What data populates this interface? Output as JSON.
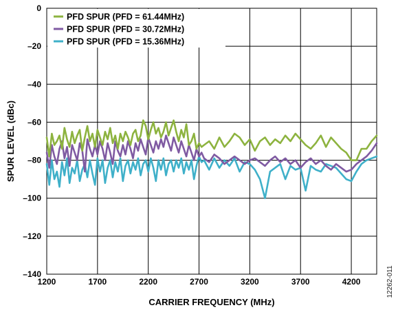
{
  "chart_data": {
    "type": "line",
    "title": "",
    "xlabel": "CARRIER FREQUENCY (MHz)",
    "ylabel": "SPUR LEVEL (dBc)",
    "xlim": [
      1200,
      4450
    ],
    "ylim": [
      -140,
      0
    ],
    "x_ticks": [
      "1200",
      "1700",
      "2200",
      "2700",
      "3200",
      "3700",
      "4200"
    ],
    "y_ticks": [
      "0",
      "–20",
      "–40",
      "–60",
      "–80",
      "–100",
      "–120",
      "–140"
    ],
    "grid": true,
    "legend_position": "top-left",
    "figure_id": "12262-011",
    "series": [
      {
        "name": "PFD SPUR (PFD = 61.44MHz)",
        "color": "#8db33f",
        "x": [
          1200,
          1225,
          1250,
          1275,
          1300,
          1325,
          1350,
          1375,
          1400,
          1425,
          1450,
          1475,
          1500,
          1525,
          1550,
          1575,
          1600,
          1625,
          1650,
          1675,
          1700,
          1725,
          1750,
          1775,
          1800,
          1825,
          1850,
          1875,
          1900,
          1925,
          1950,
          1975,
          2000,
          2025,
          2050,
          2075,
          2100,
          2125,
          2150,
          2175,
          2200,
          2225,
          2250,
          2275,
          2300,
          2325,
          2350,
          2375,
          2400,
          2425,
          2450,
          2475,
          2500,
          2525,
          2550,
          2575,
          2600,
          2625,
          2650,
          2675,
          2700,
          2725,
          2750,
          2800,
          2850,
          2900,
          2950,
          3000,
          3050,
          3100,
          3150,
          3200,
          3250,
          3300,
          3350,
          3400,
          3450,
          3500,
          3550,
          3600,
          3650,
          3700,
          3750,
          3800,
          3850,
          3900,
          3950,
          4000,
          4050,
          4100,
          4150,
          4200,
          4250,
          4300,
          4350,
          4400,
          4450
        ],
        "y": [
          -68,
          -78,
          -66,
          -72,
          -70,
          -67,
          -74,
          -63,
          -69,
          -73,
          -65,
          -71,
          -67,
          -64,
          -75,
          -68,
          -62,
          -70,
          -66,
          -73,
          -64,
          -68,
          -72,
          -65,
          -69,
          -63,
          -71,
          -67,
          -74,
          -66,
          -70,
          -65,
          -68,
          -72,
          -66,
          -64,
          -70,
          -67,
          -59,
          -62,
          -69,
          -64,
          -60,
          -66,
          -63,
          -68,
          -65,
          -60,
          -67,
          -63,
          -59,
          -65,
          -70,
          -64,
          -68,
          -61,
          -72,
          -70,
          -66,
          -74,
          -71,
          -73,
          -72,
          -70,
          -74,
          -68,
          -73,
          -70,
          -66,
          -68,
          -72,
          -69,
          -75,
          -70,
          -68,
          -72,
          -69,
          -71,
          -67,
          -70,
          -66,
          -69,
          -72,
          -74,
          -71,
          -67,
          -73,
          -68,
          -71,
          -74,
          -76,
          -80,
          -80,
          -74,
          -74,
          -70,
          -67
        ]
      },
      {
        "name": "PFD SPUR (PFD = 30.72MHz)",
        "color": "#7f5aa2",
        "x": [
          1200,
          1225,
          1250,
          1275,
          1300,
          1325,
          1350,
          1375,
          1400,
          1425,
          1450,
          1475,
          1500,
          1525,
          1550,
          1575,
          1600,
          1625,
          1650,
          1675,
          1700,
          1725,
          1750,
          1775,
          1800,
          1825,
          1850,
          1875,
          1900,
          1925,
          1950,
          1975,
          2000,
          2025,
          2050,
          2075,
          2100,
          2125,
          2150,
          2175,
          2200,
          2225,
          2250,
          2275,
          2300,
          2325,
          2350,
          2375,
          2400,
          2425,
          2450,
          2475,
          2500,
          2525,
          2550,
          2575,
          2600,
          2625,
          2650,
          2675,
          2700,
          2725,
          2750,
          2800,
          2850,
          2900,
          2950,
          3000,
          3050,
          3100,
          3150,
          3200,
          3250,
          3300,
          3350,
          3400,
          3450,
          3500,
          3550,
          3600,
          3650,
          3700,
          3750,
          3800,
          3850,
          3900,
          3950,
          4000,
          4050,
          4100,
          4150,
          4200,
          4250,
          4300,
          4350,
          4400,
          4450
        ],
        "y": [
          -76,
          -84,
          -72,
          -78,
          -82,
          -74,
          -70,
          -79,
          -73,
          -83,
          -72,
          -76,
          -80,
          -71,
          -75,
          -86,
          -69,
          -74,
          -78,
          -72,
          -77,
          -70,
          -74,
          -80,
          -71,
          -76,
          -82,
          -70,
          -75,
          -78,
          -72,
          -77,
          -70,
          -74,
          -79,
          -71,
          -75,
          -69,
          -73,
          -77,
          -68,
          -72,
          -76,
          -70,
          -74,
          -69,
          -73,
          -67,
          -71,
          -75,
          -68,
          -72,
          -76,
          -70,
          -74,
          -78,
          -72,
          -76,
          -80,
          -74,
          -78,
          -76,
          -79,
          -81,
          -77,
          -79,
          -82,
          -80,
          -78,
          -80,
          -82,
          -80,
          -79,
          -81,
          -83,
          -80,
          -78,
          -81,
          -79,
          -82,
          -80,
          -84,
          -81,
          -79,
          -82,
          -80,
          -83,
          -85,
          -82,
          -84,
          -86,
          -85,
          -82,
          -80,
          -78,
          -75,
          -71
        ]
      },
      {
        "name": "PFD SPUR (PFD = 15.36MHz)",
        "color": "#3fb0c9",
        "x": [
          1200,
          1225,
          1250,
          1275,
          1300,
          1325,
          1350,
          1375,
          1400,
          1425,
          1450,
          1475,
          1500,
          1525,
          1550,
          1575,
          1600,
          1625,
          1650,
          1675,
          1700,
          1725,
          1750,
          1775,
          1800,
          1825,
          1850,
          1875,
          1900,
          1925,
          1950,
          1975,
          2000,
          2025,
          2050,
          2075,
          2100,
          2125,
          2150,
          2175,
          2200,
          2225,
          2250,
          2275,
          2300,
          2325,
          2350,
          2375,
          2400,
          2425,
          2450,
          2475,
          2500,
          2525,
          2550,
          2575,
          2600,
          2625,
          2650,
          2675,
          2700,
          2725,
          2750,
          2800,
          2850,
          2900,
          2950,
          3000,
          3050,
          3100,
          3150,
          3200,
          3250,
          3300,
          3350,
          3400,
          3450,
          3500,
          3550,
          3600,
          3650,
          3700,
          3750,
          3800,
          3850,
          3900,
          3950,
          4000,
          4050,
          4100,
          4150,
          4200,
          4250,
          4300,
          4350,
          4400,
          4450
        ],
        "y": [
          -82,
          -93,
          -80,
          -90,
          -86,
          -94,
          -81,
          -88,
          -79,
          -92,
          -84,
          -87,
          -80,
          -91,
          -85,
          -82,
          -89,
          -80,
          -87,
          -93,
          -79,
          -86,
          -80,
          -92,
          -84,
          -80,
          -89,
          -81,
          -86,
          -79,
          -91,
          -83,
          -80,
          -87,
          -81,
          -85,
          -79,
          -88,
          -82,
          -80,
          -86,
          -79,
          -84,
          -91,
          -80,
          -85,
          -79,
          -88,
          -82,
          -80,
          -86,
          -80,
          -84,
          -79,
          -87,
          -81,
          -85,
          -80,
          -90,
          -83,
          -78,
          -81,
          -80,
          -85,
          -79,
          -84,
          -80,
          -83,
          -79,
          -86,
          -81,
          -82,
          -85,
          -90,
          -100,
          -86,
          -84,
          -82,
          -90,
          -83,
          -85,
          -84,
          -96,
          -83,
          -85,
          -86,
          -82,
          -83,
          -84,
          -87,
          -90,
          -91,
          -86,
          -82,
          -80,
          -79,
          -78
        ]
      }
    ]
  }
}
